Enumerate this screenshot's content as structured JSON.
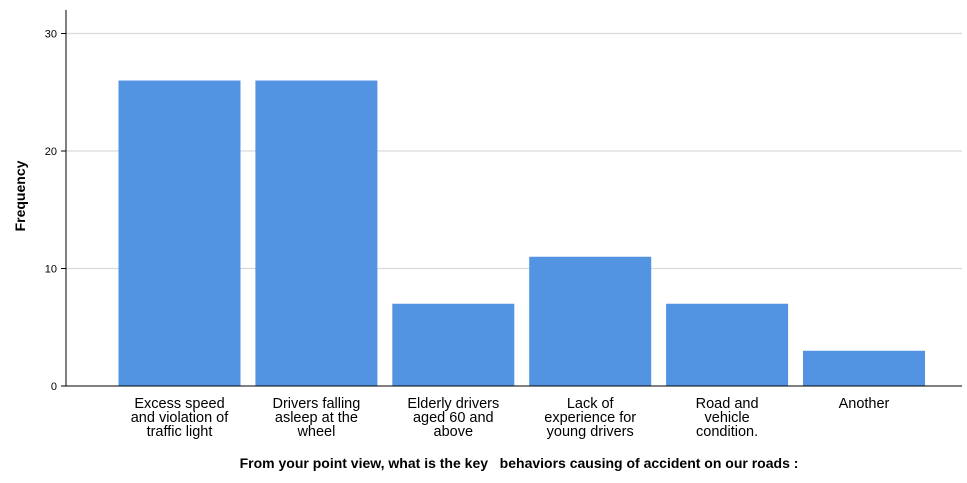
{
  "chart_data": {
    "type": "bar",
    "categories": [
      [
        "Excess speed",
        "and violation of",
        "traffic  light"
      ],
      [
        "Drivers falling",
        "asleep at the",
        "wheel"
      ],
      [
        "Elderly drivers",
        "aged 60 and",
        "above"
      ],
      [
        "Lack of",
        "experience for",
        "young drivers"
      ],
      [
        "Road and",
        "vehicle",
        "condition."
      ],
      [
        "Another"
      ]
    ],
    "values": [
      26,
      26,
      7,
      11,
      7,
      3
    ],
    "ylim": [
      0,
      32
    ],
    "yticks": [
      0,
      10,
      20,
      30
    ],
    "ylabel": "Frequency",
    "xlabel": "From your point view, what is the key   behaviors causing of accident on our roads :",
    "grid": true,
    "bar_color": "#5294E2",
    "grid_color": "#D9D9D9",
    "axis_color": "#000000"
  }
}
